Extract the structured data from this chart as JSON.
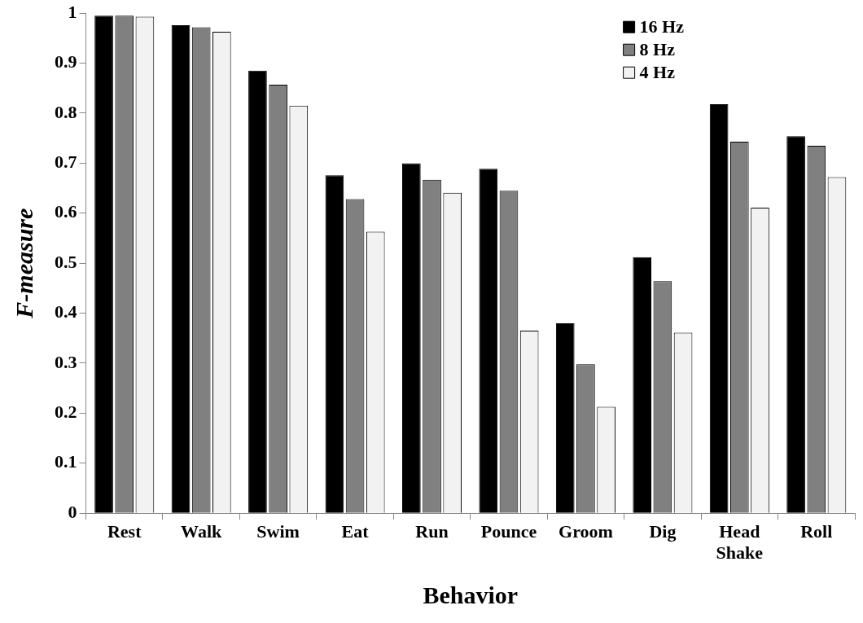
{
  "chart_data": {
    "type": "bar",
    "xlabel": "Behavior",
    "ylabel": "F-measure",
    "categories": [
      "Rest",
      "Walk",
      "Swim",
      "Eat",
      "Run",
      "Pounce",
      "Groom",
      "Dig",
      "Head Shake",
      "Roll"
    ],
    "series": [
      {
        "name": "16 Hz",
        "color": "#000000",
        "values": [
          0.995,
          0.976,
          0.885,
          0.676,
          0.7,
          0.689,
          0.38,
          0.512,
          0.818,
          0.754
        ]
      },
      {
        "name": "8 Hz",
        "color": "#808080",
        "values": [
          0.995,
          0.972,
          0.857,
          0.628,
          0.667,
          0.645,
          0.298,
          0.464,
          0.743,
          0.735
        ]
      },
      {
        "name": "4 Hz",
        "color": "#f2f2f2",
        "values": [
          0.993,
          0.963,
          0.815,
          0.563,
          0.641,
          0.365,
          0.213,
          0.361,
          0.611,
          0.672
        ]
      }
    ],
    "ylim": [
      0,
      1
    ],
    "yticks": [
      0,
      0.1,
      0.2,
      0.3,
      0.4,
      0.5,
      0.6,
      0.7,
      0.8,
      0.9,
      1
    ],
    "grid": false,
    "legend": "top right"
  }
}
